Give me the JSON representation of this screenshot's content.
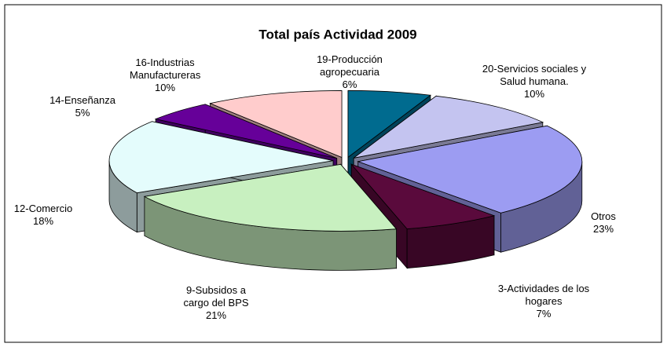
{
  "chart_data": {
    "type": "pie",
    "title": "Total país Actividad 2009",
    "categories": [
      "19-Producción agropecuaria",
      "20-Servicios sociales y Salud humana.",
      "Otros",
      "3-Actividades de los hogares",
      "9-Subsidos a cargo del BPS",
      "12-Comercio",
      "14-Enseñanza",
      "16-Industrias Manufactureras"
    ],
    "values": [
      6,
      10,
      23,
      7,
      21,
      18,
      5,
      10
    ],
    "value_labels": [
      "6%",
      "10%",
      "23%",
      "7%",
      "21%",
      "18%",
      "5%",
      "10%"
    ],
    "colors": [
      "#006b8f",
      "#c4c4f0",
      "#9c9cf2",
      "#5a0a3c",
      "#c8f0c0",
      "#e4fcfc",
      "#660099",
      "#ffcccc"
    ]
  }
}
